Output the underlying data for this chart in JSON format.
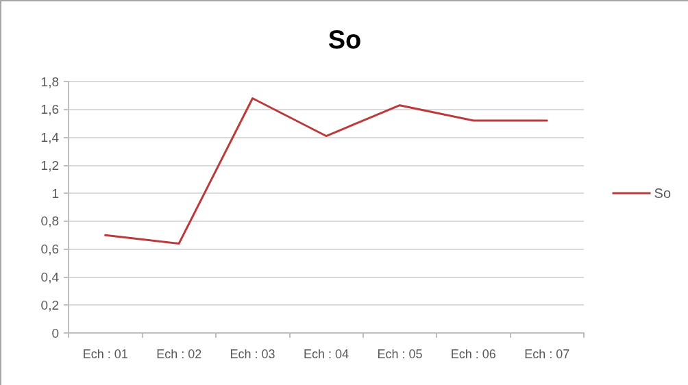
{
  "chart_data": {
    "type": "line",
    "title": "So",
    "categories": [
      "Ech : 01",
      "Ech : 02",
      "Ech : 03",
      "Ech : 04",
      "Ech : 05",
      "Ech : 06",
      "Ech : 07"
    ],
    "series": [
      {
        "name": "So",
        "color": "#bb3a3a",
        "values": [
          0.7,
          0.64,
          1.68,
          1.41,
          1.63,
          1.52,
          1.52
        ]
      }
    ],
    "ylim": [
      0,
      1.8
    ],
    "yticks": [
      0,
      {
        "value": 0.2,
        "label": "0,2"
      },
      {
        "value": 0.4,
        "label": "0,4"
      },
      {
        "value": 0.6,
        "label": "0,6"
      },
      {
        "value": 0.8,
        "label": "0,8"
      },
      1,
      {
        "value": 1.2,
        "label": "1,2"
      },
      {
        "value": 1.4,
        "label": "1,4"
      },
      {
        "value": 1.6,
        "label": "1,6"
      },
      {
        "value": 1.8,
        "label": "1,8"
      }
    ],
    "grid": "y",
    "legend": "right",
    "marker": "none",
    "line_style": "solid"
  }
}
